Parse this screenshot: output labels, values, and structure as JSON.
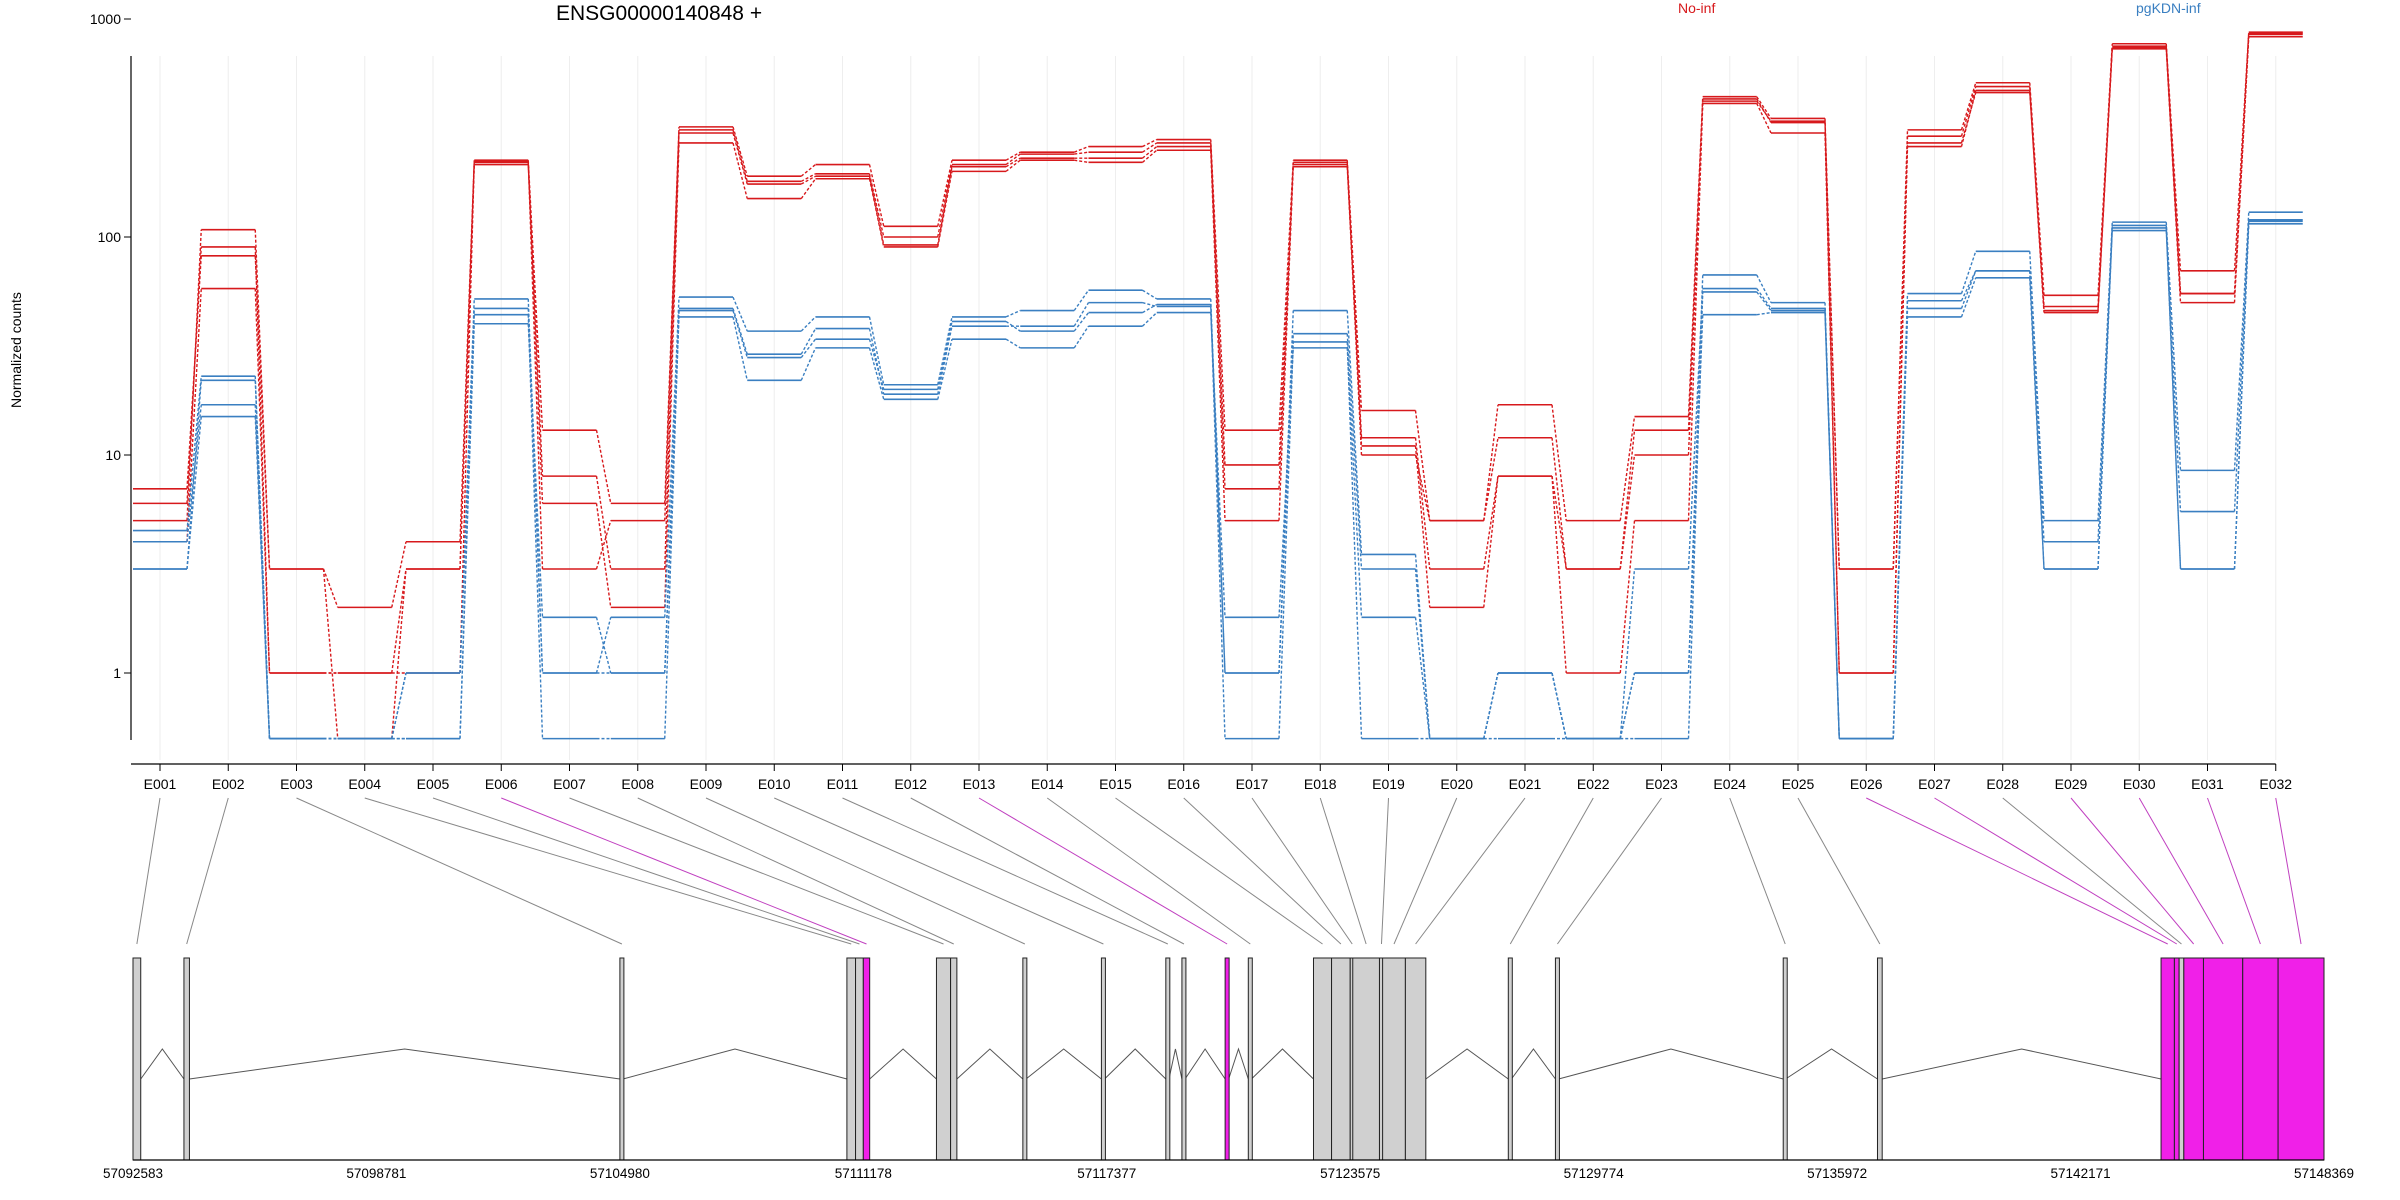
{
  "colors": {
    "no_inf": "#d7191c",
    "pgkdn_inf": "#3a7fc1",
    "highlight": "#f020e8",
    "exon_fill": "#d0d0d0"
  },
  "chart_data": {
    "type": "line",
    "title": "ENSG00000140848 +",
    "ylabel": "Normalized counts",
    "y_scale": "log",
    "ylim": [
      0.5,
      1000
    ],
    "yticks": [
      "1",
      "10",
      "100",
      "1000"
    ],
    "grid": "vertical at exon positions",
    "legend": [
      "No-inf",
      "pgKDN-inf"
    ],
    "legend_placement": "top-right",
    "categories": [
      "E001",
      "E002",
      "E003",
      "E004",
      "E005",
      "E006",
      "E007",
      "E008",
      "E009",
      "E010",
      "E011",
      "E012",
      "E013",
      "E014",
      "E015",
      "E016",
      "E017",
      "E018",
      "E019",
      "E020",
      "E021",
      "E022",
      "E023",
      "E024",
      "E025",
      "E026",
      "E027",
      "E028",
      "E029",
      "E030",
      "E031",
      "E032"
    ],
    "series": [
      {
        "name": "No-inf",
        "values": [
          7,
          82,
          3,
          0.5,
          3,
          215,
          8,
          3,
          300,
          175,
          190,
          92,
          210,
          230,
          230,
          260,
          9,
          215,
          12,
          3,
          8,
          3,
          10,
          420,
          340,
          1,
          270,
          460,
          48,
          740,
          55,
          850
        ]
      },
      {
        "name": "No-inf",
        "values": [
          6,
          90,
          1,
          1,
          1,
          220,
          6,
          2,
          270,
          150,
          185,
          90,
          200,
          225,
          220,
          250,
          5,
          210,
          11,
          2,
          8,
          1,
          5,
          410,
          300,
          1,
          260,
          470,
          45,
          730,
          50,
          830
        ]
      },
      {
        "name": "No-inf",
        "values": [
          5,
          108,
          3,
          2,
          4,
          225,
          13,
          6,
          320,
          190,
          215,
          112,
          225,
          245,
          260,
          280,
          13,
          225,
          16,
          5,
          17,
          5,
          15,
          440,
          350,
          3,
          310,
          510,
          54,
          770,
          70,
          870
        ]
      },
      {
        "name": "No-inf",
        "values": [
          4,
          58,
          1,
          1,
          3,
          222,
          3,
          5,
          310,
          180,
          195,
          100,
          215,
          240,
          245,
          270,
          7,
          220,
          10,
          5,
          12,
          3,
          13,
          430,
          335,
          3,
          290,
          490,
          46,
          750,
          55,
          860
        ]
      },
      {
        "name": "pgKDN-inf",
        "values": [
          3,
          22,
          0.5,
          0.5,
          0.5,
          47,
          1,
          1,
          47,
          29,
          38,
          19,
          39,
          39,
          50,
          48,
          1,
          36,
          3,
          0.5,
          1,
          0.5,
          3,
          58,
          47,
          0.5,
          47,
          70,
          4,
          107,
          5.5,
          120
        ]
      },
      {
        "name": "pgKDN-inf",
        "values": [
          3,
          15,
          0.5,
          0.5,
          0.5,
          40,
          1.8,
          1,
          43,
          22,
          31,
          18,
          34,
          31,
          39,
          45,
          1.8,
          31,
          1.8,
          0.5,
          0.5,
          0.5,
          1,
          44,
          45,
          0.5,
          43,
          65,
          3,
          110,
          3,
          115
        ]
      },
      {
        "name": "pgKDN-inf",
        "values": [
          4.5,
          23,
          0.5,
          0.5,
          1,
          52,
          1,
          1.8,
          53,
          37,
          43,
          21,
          43,
          46,
          57,
          52,
          1,
          46,
          3.5,
          0.5,
          1,
          0.5,
          1,
          67,
          50,
          0.5,
          55,
          86,
          5,
          117,
          8.5,
          130
        ]
      },
      {
        "name": "pgKDN-inf",
        "values": [
          4,
          17,
          0.5,
          0.5,
          1,
          44,
          0.5,
          0.5,
          46,
          28,
          34,
          20,
          41,
          37,
          45,
          49,
          0.5,
          33,
          0.5,
          0.5,
          1,
          0.5,
          0.5,
          56,
          46,
          0.5,
          51,
          70,
          3,
          113,
          3,
          118
        ]
      }
    ],
    "gene_model": {
      "axis_ticks": [
        "57092583",
        "57098781",
        "57104980",
        "57111178",
        "57117377",
        "57123575",
        "57129774",
        "57135972",
        "57142171",
        "57148369"
      ],
      "range": [
        57092583,
        57148369
      ],
      "exons": [
        {
          "id": "E001",
          "start": 57092583,
          "end": 57092780,
          "highlight": false
        },
        {
          "id": "E002",
          "start": 57093880,
          "end": 57094020,
          "highlight": false
        },
        {
          "id": "E003",
          "start": 57104980,
          "end": 57105060,
          "highlight": false
        },
        {
          "id": "E004",
          "start": 57110760,
          "end": 57110980,
          "highlight": false
        },
        {
          "id": "E005",
          "start": 57110980,
          "end": 57111178,
          "highlight": false
        },
        {
          "id": "E006",
          "start": 57111178,
          "end": 57111340,
          "highlight": true
        },
        {
          "id": "E007",
          "start": 57113040,
          "end": 57113400,
          "highlight": false
        },
        {
          "id": "E008",
          "start": 57113400,
          "end": 57113560,
          "highlight": false
        },
        {
          "id": "E009",
          "start": 57115240,
          "end": 57115320,
          "highlight": false
        },
        {
          "id": "E010",
          "start": 57117240,
          "end": 57117320,
          "highlight": false
        },
        {
          "id": "E011",
          "start": 57118880,
          "end": 57118960,
          "highlight": false
        },
        {
          "id": "E012",
          "start": 57119290,
          "end": 57119370,
          "highlight": false
        },
        {
          "id": "E013",
          "start": 57120390,
          "end": 57120480,
          "highlight": true
        },
        {
          "id": "E014",
          "start": 57120980,
          "end": 57121060,
          "highlight": false
        },
        {
          "id": "E015",
          "start": 57122640,
          "end": 57123100,
          "highlight": false
        },
        {
          "id": "E016",
          "start": 57123100,
          "end": 57123575,
          "highlight": false
        },
        {
          "id": "E017",
          "start": 57123575,
          "end": 57123640,
          "highlight": false
        },
        {
          "id": "E018",
          "start": 57123640,
          "end": 57124320,
          "highlight": false
        },
        {
          "id": "E019",
          "start": 57124320,
          "end": 57124400,
          "highlight": false
        },
        {
          "id": "E020",
          "start": 57124400,
          "end": 57124980,
          "highlight": false
        },
        {
          "id": "E021",
          "start": 57124980,
          "end": 57125500,
          "highlight": false
        },
        {
          "id": "E022",
          "start": 57127600,
          "end": 57127680,
          "highlight": false
        },
        {
          "id": "E023",
          "start": 57128800,
          "end": 57128880,
          "highlight": false
        },
        {
          "id": "E024",
          "start": 57134600,
          "end": 57134660,
          "highlight": false
        },
        {
          "id": "E025",
          "start": 57137000,
          "end": 57137120,
          "highlight": false
        },
        {
          "id": "E026",
          "start": 57144220,
          "end": 57144560,
          "highlight": true
        },
        {
          "id": "E027",
          "start": 57144560,
          "end": 57144680,
          "highlight": true
        },
        {
          "id": "E028",
          "start": 57144680,
          "end": 57144800,
          "highlight": false
        },
        {
          "id": "E029",
          "start": 57144800,
          "end": 57145300,
          "highlight": true
        },
        {
          "id": "E030",
          "start": 57145300,
          "end": 57146300,
          "highlight": true
        },
        {
          "id": "E031",
          "start": 57146300,
          "end": 57147200,
          "highlight": true
        },
        {
          "id": "E032",
          "start": 57147200,
          "end": 57148369,
          "highlight": true
        }
      ]
    }
  }
}
